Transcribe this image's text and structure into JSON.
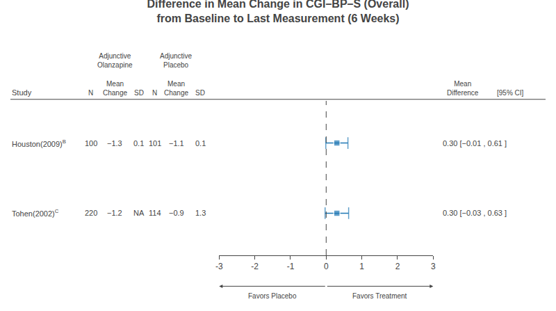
{
  "chart_data": {
    "type": "forest",
    "title": "Difference in Mean Change in CGI–BP–S (Overall)",
    "subtitle": "from Baseline to Last Measurement (6 Weeks)",
    "column_headers": {
      "study": "Study",
      "group1": "Adjunctive\nOlanzapine",
      "group2": "Adjunctive\nPlacebo",
      "n": "N",
      "mean": "Mean\nChange",
      "sd": "SD",
      "effect": "Mean\nDifference",
      "ci": "[95% CI]"
    },
    "studies": [
      {
        "name": "Houston(2009)",
        "superscript": "B",
        "olanz_n": "100",
        "olanz_mean": "−1.3",
        "olanz_sd": "0.1",
        "plac_n": "101",
        "plac_mean": "−1.1",
        "plac_sd": "0.1",
        "mean_diff": 0.3,
        "ci_low": -0.01,
        "ci_high": 0.61,
        "ci_text": "0.30 [−0.01 , 0.61 ]"
      },
      {
        "name": "Tohen(2002)",
        "superscript": "C",
        "olanz_n": "220",
        "olanz_mean": "−1.2",
        "olanz_sd": "NA",
        "plac_n": "114",
        "plac_mean": "−0.9",
        "plac_sd": "1.3",
        "mean_diff": 0.3,
        "ci_low": -0.03,
        "ci_high": 0.63,
        "ci_text": "0.30 [−0.03 , 0.63 ]"
      }
    ],
    "xlim": [
      -3,
      3
    ],
    "xticks": [
      -3,
      -2,
      -1,
      0,
      1,
      2,
      3
    ],
    "reference_x": 0,
    "direction_labels": [
      "Favors Placebo",
      "Favors Treatment"
    ],
    "grid": false
  }
}
